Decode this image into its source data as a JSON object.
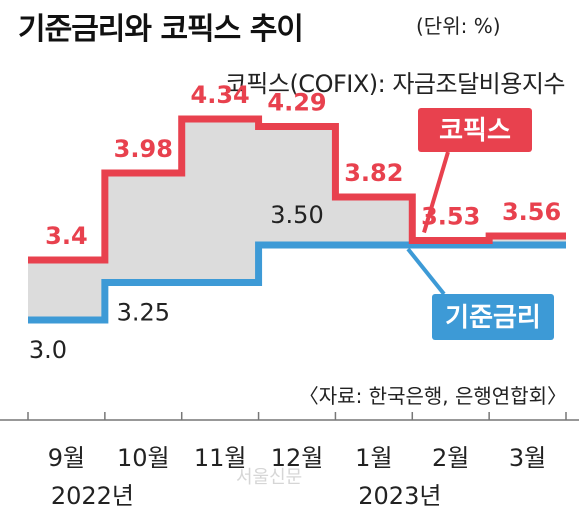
{
  "header": {
    "title": "기준금리와 코픽스 추이",
    "unit": "(단위: %)",
    "subtitle": "코픽스(COFIX): 자금조달비용지수",
    "source": "〈자료: 한국은행, 은행연합회〉",
    "watermark": "서울신문"
  },
  "colors": {
    "cofix": "#e8414e",
    "base_rate": "#3d9ad6",
    "fill": "#dcdcdc",
    "baseline": "#777777"
  },
  "chart_data": {
    "type": "line",
    "step": true,
    "categories": [
      "9월",
      "10월",
      "11월",
      "12월",
      "1월",
      "2월",
      "3월"
    ],
    "year_labels": [
      {
        "label": "2022년",
        "category_index": 0
      },
      {
        "label": "2023년",
        "category_index": 4
      }
    ],
    "series": [
      {
        "name": "코픽스",
        "values": [
          3.4,
          3.98,
          4.34,
          4.29,
          3.82,
          3.53,
          3.56
        ],
        "value_labels": [
          "3.4",
          "3.98",
          "4.34",
          "4.29",
          "3.82",
          "3.53",
          "3.56"
        ]
      },
      {
        "name": "기준금리",
        "values": [
          3.0,
          3.25,
          3.25,
          3.5,
          3.5,
          3.5,
          3.5
        ],
        "value_labels": [
          "3.0",
          "3.25",
          "",
          "3.50",
          "",
          "",
          ""
        ]
      }
    ],
    "ylim": [
      2.6,
      4.6
    ],
    "grid": false,
    "legend": "inline"
  }
}
